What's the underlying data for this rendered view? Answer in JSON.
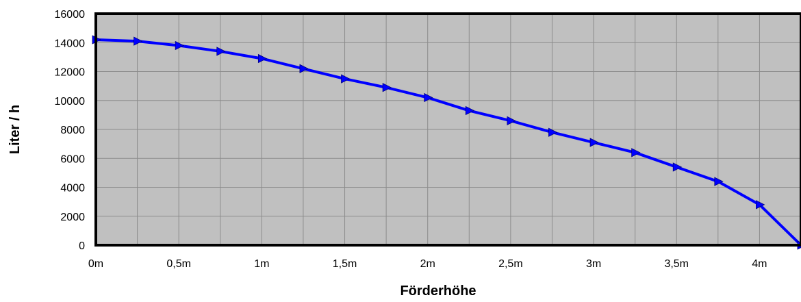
{
  "chart_data": {
    "type": "line",
    "title": "",
    "xlabel": "Förderhöhe",
    "ylabel": "Liter / h",
    "x": [
      0,
      0.25,
      0.5,
      0.75,
      1,
      1.25,
      1.5,
      1.75,
      2,
      2.25,
      2.5,
      2.75,
      3,
      3.25,
      3.5,
      3.75,
      4,
      4.25
    ],
    "x_tick_labels": [
      "0m",
      "0,5m",
      "1m",
      "1,5m",
      "2m",
      "2,5m",
      "3m",
      "3,5m",
      "4m"
    ],
    "x_tick_values": [
      0,
      0.5,
      1,
      1.5,
      2,
      2.5,
      3,
      3.5,
      4
    ],
    "xlim": [
      0,
      4.25
    ],
    "y_ticks": [
      0,
      2000,
      4000,
      6000,
      8000,
      10000,
      12000,
      14000,
      16000
    ],
    "ylim": [
      0,
      16000
    ],
    "series": [
      {
        "values": [
          14200,
          14100,
          13800,
          13400,
          12900,
          12200,
          11500,
          10900,
          10200,
          9300,
          8600,
          7800,
          7100,
          6400,
          5400,
          4400,
          2800,
          0
        ]
      }
    ],
    "grid": true,
    "plot_background": "#c0c0c0",
    "line_color": "#0000ff",
    "grid_color": "#8c8c8c",
    "border_color": "#000000",
    "marker": "triangle-right"
  }
}
